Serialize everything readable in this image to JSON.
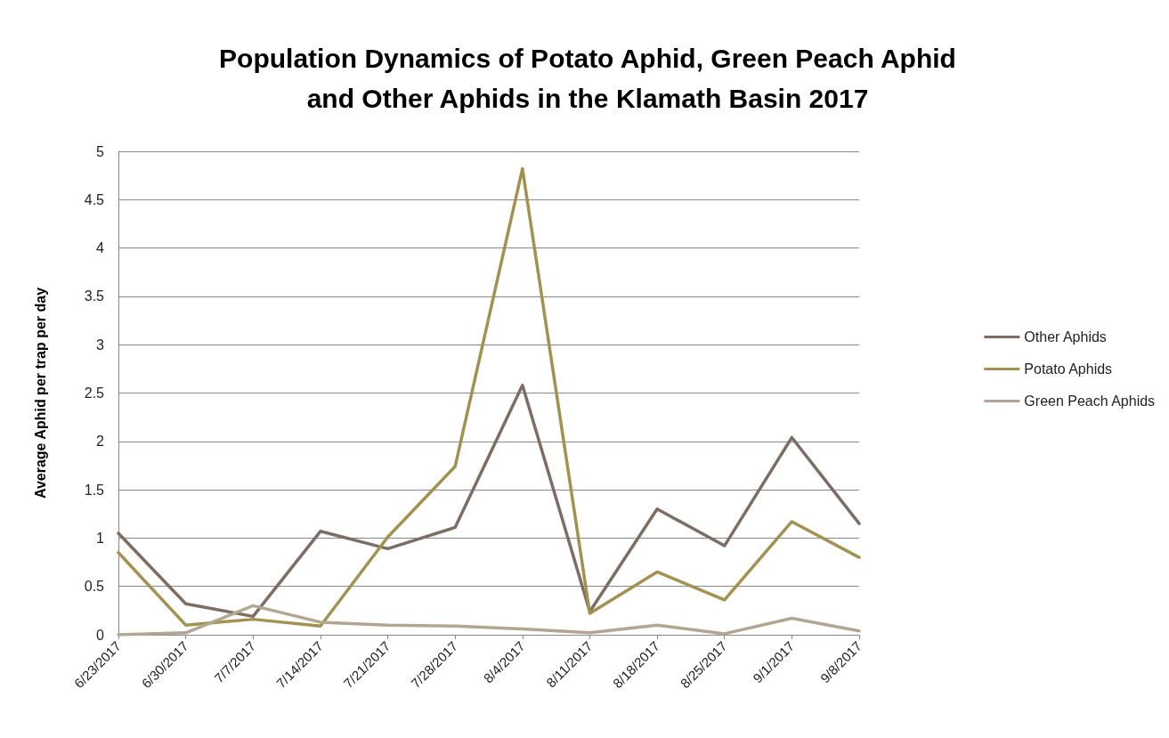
{
  "chart_data": {
    "type": "line",
    "title": "Population Dynamics of Potato Aphid, Green Peach Aphid\nand Other Aphids in the Klamath Basin 2017",
    "ylabel": "Average Aphid per trap per day",
    "categories": [
      "6/23/2017",
      "6/30/2017",
      "7/7/2017",
      "7/14/2017",
      "7/21/2017",
      "7/28/2017",
      "8/4/2017",
      "8/11/2017",
      "8/18/2017",
      "8/25/2017",
      "9/1/2017",
      "9/8/2017"
    ],
    "series": [
      {
        "name": "Other Aphids",
        "color": "#7d6d64",
        "values": [
          1.05,
          0.32,
          0.19,
          1.07,
          0.89,
          1.11,
          2.58,
          0.24,
          1.3,
          0.92,
          2.04,
          1.15
        ]
      },
      {
        "name": "Potato Aphids",
        "color": "#a3924f",
        "values": [
          0.85,
          0.1,
          0.16,
          0.09,
          1.01,
          1.74,
          4.82,
          0.22,
          0.65,
          0.36,
          1.17,
          0.8
        ]
      },
      {
        "name": "Green Peach Aphids",
        "color": "#b2a690",
        "values": [
          0.0,
          0.02,
          0.3,
          0.13,
          0.1,
          0.09,
          0.06,
          0.02,
          0.1,
          0.01,
          0.17,
          0.04
        ]
      }
    ],
    "ylim": [
      0,
      5
    ],
    "yticks": [
      0,
      0.5,
      1,
      1.5,
      2,
      2.5,
      3,
      3.5,
      4,
      4.5,
      5
    ],
    "grid": "y",
    "legend": "right",
    "marker": "none",
    "line_style": "solid"
  }
}
